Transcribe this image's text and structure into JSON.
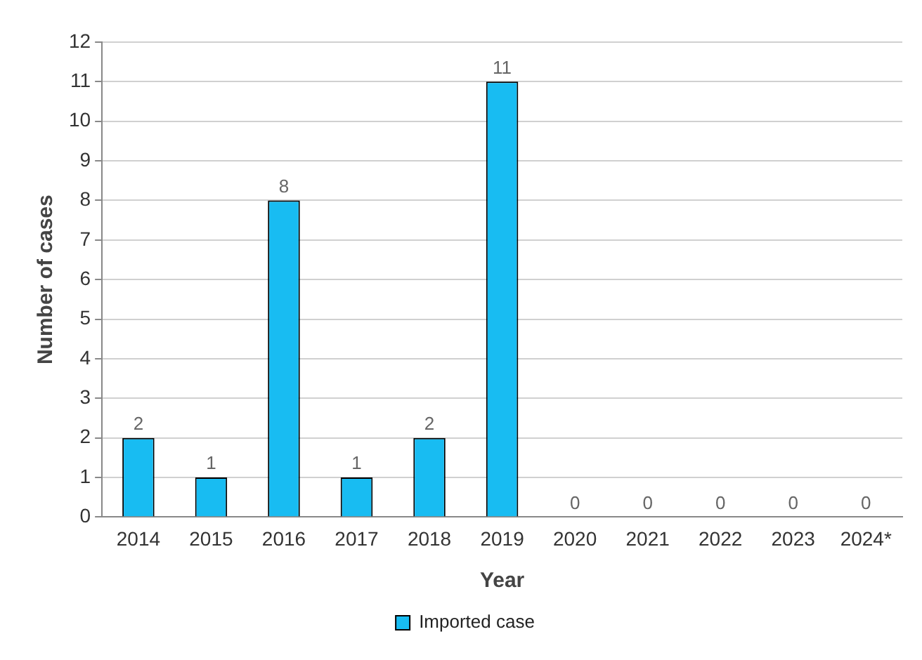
{
  "chart_data": {
    "type": "bar",
    "xlabel": "Year",
    "ylabel": "Number of cases",
    "categories": [
      "2014",
      "2015",
      "2016",
      "2017",
      "2018",
      "2019",
      "2020",
      "2021",
      "2022",
      "2023",
      "2024*"
    ],
    "series": [
      {
        "name": "Imported case",
        "color": "#18bcf2",
        "values": [
          2,
          1,
          8,
          1,
          2,
          11,
          0,
          0,
          0,
          0,
          0
        ]
      }
    ],
    "ylim": [
      0,
      12
    ],
    "yticks": [
      0,
      1,
      2,
      3,
      4,
      5,
      6,
      7,
      8,
      9,
      10,
      11,
      12
    ],
    "grid": "y",
    "legend": "bottom",
    "data_labels": true
  }
}
